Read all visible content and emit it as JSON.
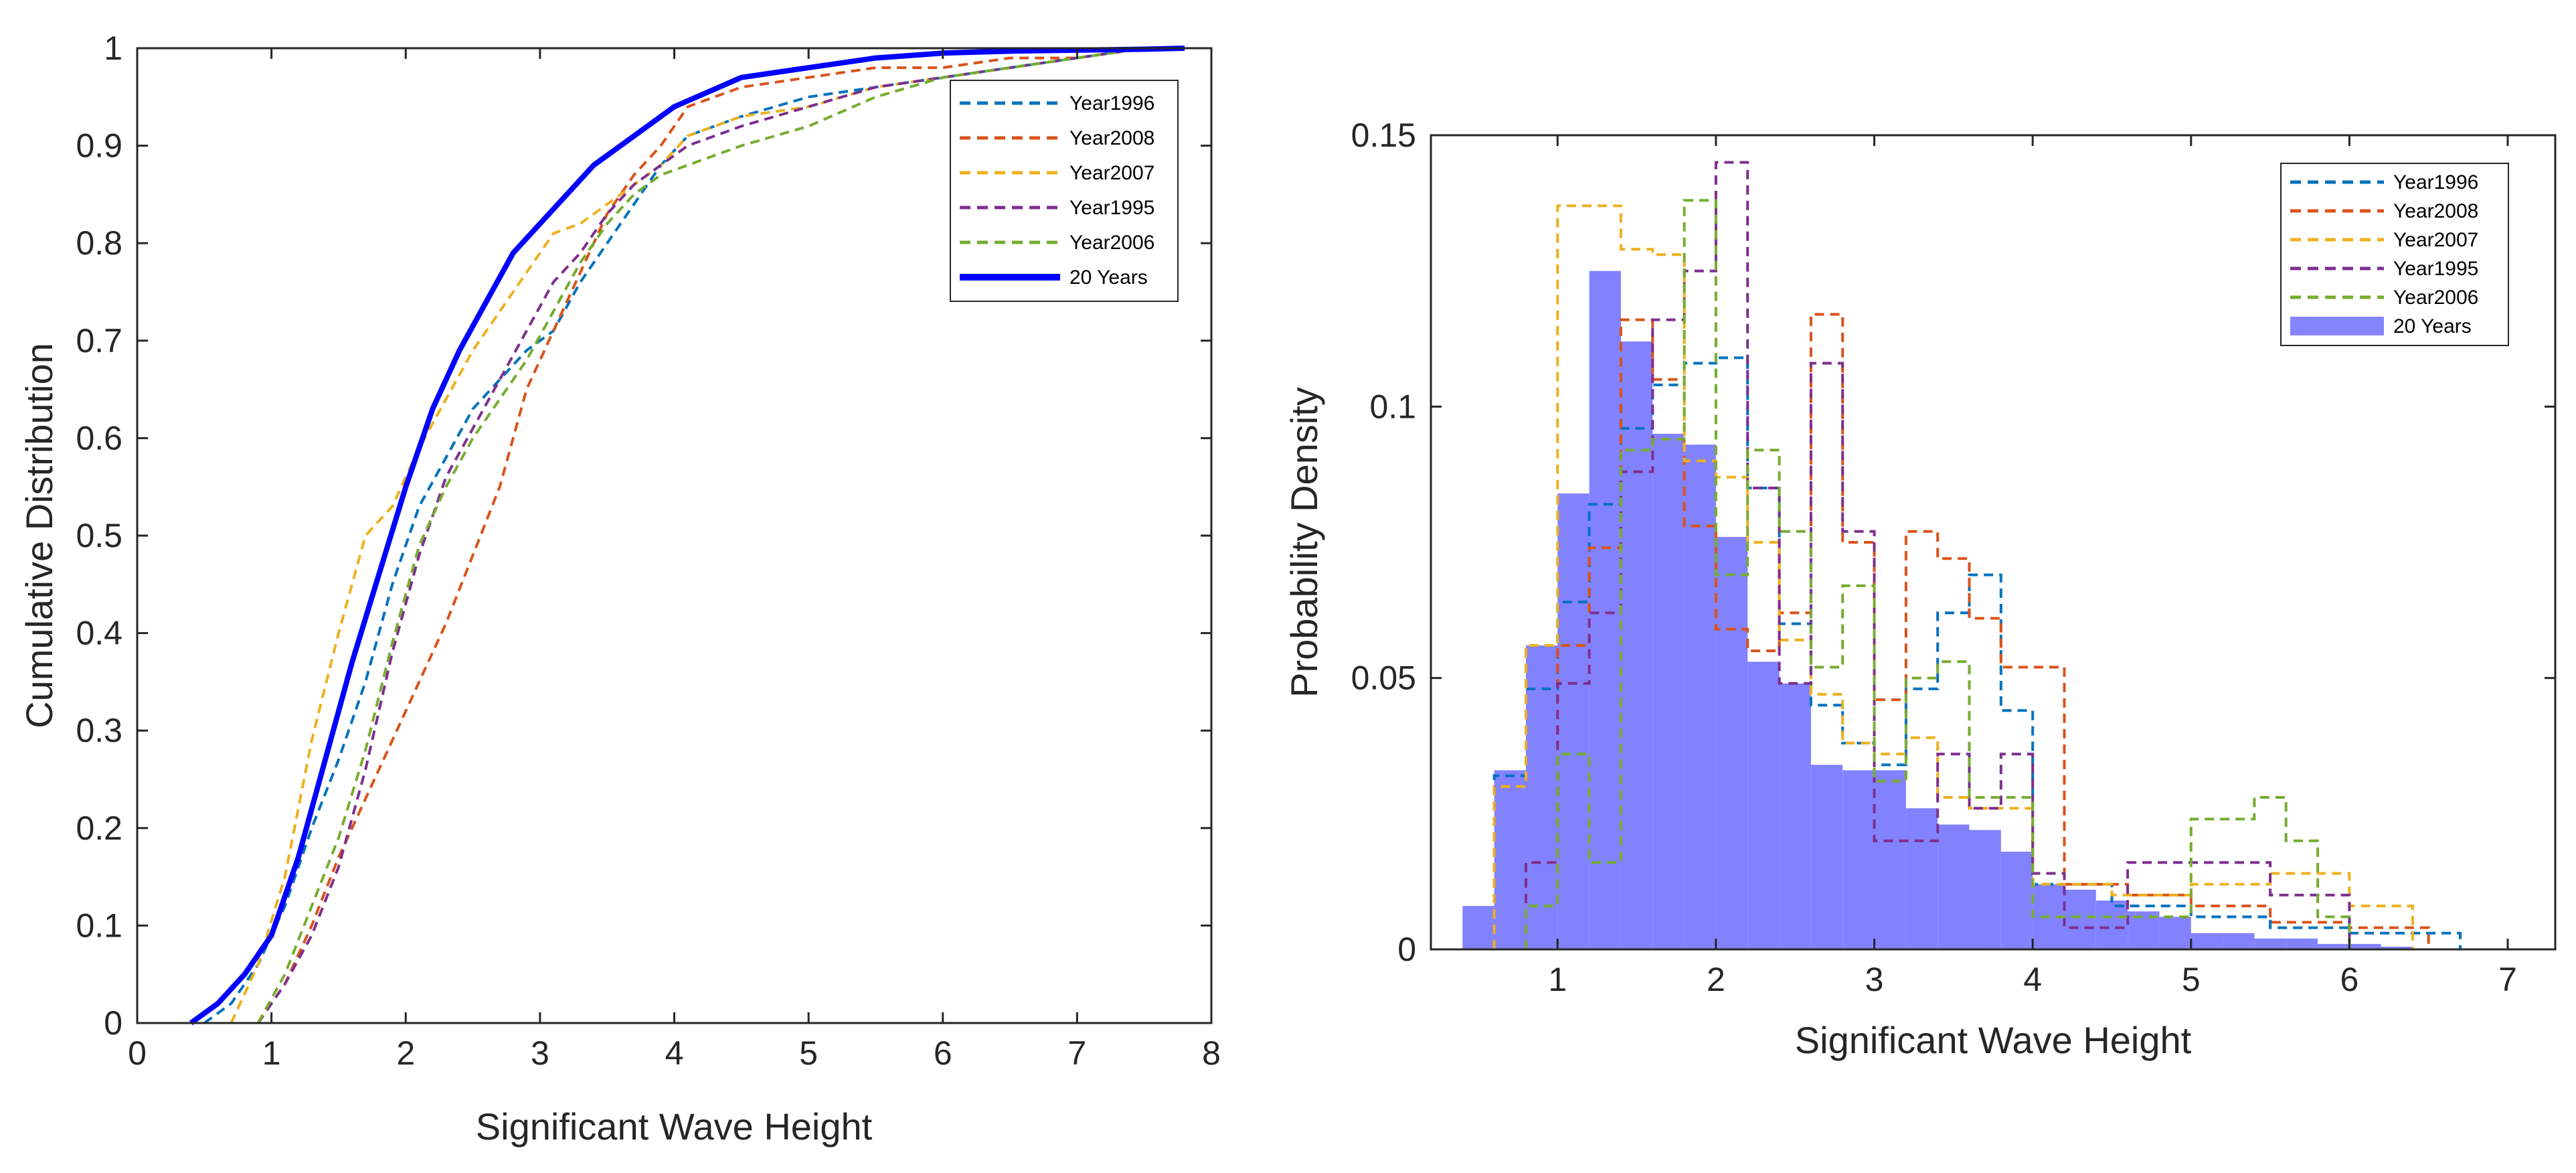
{
  "chart_data": [
    {
      "type": "line",
      "title": "",
      "xlabel": "Significant Wave Height",
      "ylabel": "Cumulative Distribution",
      "xlim": [
        0,
        8
      ],
      "ylim": [
        0,
        1
      ],
      "xticks": [
        "0",
        "1",
        "2",
        "3",
        "4",
        "5",
        "6",
        "7",
        "8"
      ],
      "yticks": [
        "0",
        "0.1",
        "0.2",
        "0.3",
        "0.4",
        "0.5",
        "0.6",
        "0.7",
        "0.8",
        "0.9",
        "1"
      ],
      "legend_position": "top-right",
      "series": [
        {
          "name": "Year1996",
          "color": "#0072BD",
          "style": "dashed",
          "x": [
            0.5,
            0.7,
            0.9,
            1.1,
            1.3,
            1.5,
            1.7,
            1.9,
            2.1,
            2.3,
            2.5,
            2.7,
            2.9,
            3.1,
            3.3,
            3.5,
            3.7,
            3.9,
            4.1,
            4.5,
            5.0,
            5.5,
            6.0,
            6.5,
            7.0,
            7.5
          ],
          "y": [
            0,
            0.02,
            0.06,
            0.12,
            0.2,
            0.27,
            0.35,
            0.45,
            0.53,
            0.58,
            0.63,
            0.66,
            0.69,
            0.71,
            0.76,
            0.8,
            0.84,
            0.88,
            0.91,
            0.93,
            0.95,
            0.96,
            0.97,
            0.98,
            0.99,
            1.0
          ]
        },
        {
          "name": "Year2008",
          "color": "#D95319",
          "style": "dashed",
          "x": [
            0.9,
            1.1,
            1.3,
            1.5,
            1.7,
            1.9,
            2.1,
            2.3,
            2.5,
            2.7,
            2.9,
            3.1,
            3.3,
            3.5,
            3.7,
            3.9,
            4.1,
            4.5,
            5.0,
            5.5,
            6.0,
            6.5,
            7.0,
            7.5
          ],
          "y": [
            0,
            0.04,
            0.1,
            0.17,
            0.23,
            0.29,
            0.35,
            0.41,
            0.48,
            0.55,
            0.65,
            0.71,
            0.77,
            0.83,
            0.87,
            0.9,
            0.94,
            0.96,
            0.97,
            0.98,
            0.98,
            0.99,
            0.99,
            1.0
          ]
        },
        {
          "name": "Year2007",
          "color": "#EDB120",
          "style": "dashed",
          "x": [
            0.7,
            0.9,
            1.1,
            1.3,
            1.5,
            1.7,
            1.9,
            2.1,
            2.3,
            2.5,
            2.7,
            2.9,
            3.1,
            3.3,
            3.5,
            3.7,
            3.9,
            4.1,
            4.5,
            5.0,
            5.5,
            6.0,
            6.5,
            7.0,
            7.5
          ],
          "y": [
            0,
            0.06,
            0.15,
            0.29,
            0.4,
            0.5,
            0.53,
            0.59,
            0.64,
            0.69,
            0.73,
            0.77,
            0.81,
            0.82,
            0.84,
            0.86,
            0.88,
            0.91,
            0.93,
            0.94,
            0.96,
            0.97,
            0.98,
            0.99,
            1.0
          ]
        },
        {
          "name": "Year1995",
          "color": "#7E2F8E",
          "style": "dashed",
          "x": [
            0.9,
            1.1,
            1.3,
            1.5,
            1.7,
            1.9,
            2.1,
            2.3,
            2.5,
            2.7,
            2.9,
            3.1,
            3.3,
            3.5,
            3.7,
            3.9,
            4.1,
            4.5,
            5.0,
            5.5,
            6.0,
            6.5,
            7.0,
            7.5
          ],
          "y": [
            0,
            0.04,
            0.09,
            0.16,
            0.26,
            0.38,
            0.48,
            0.56,
            0.61,
            0.66,
            0.71,
            0.76,
            0.79,
            0.83,
            0.86,
            0.88,
            0.9,
            0.92,
            0.94,
            0.96,
            0.97,
            0.98,
            0.99,
            1.0
          ]
        },
        {
          "name": "Year2006",
          "color": "#77AC30",
          "style": "dashed",
          "x": [
            0.9,
            1.1,
            1.3,
            1.5,
            1.7,
            1.9,
            2.1,
            2.3,
            2.5,
            2.7,
            2.9,
            3.1,
            3.3,
            3.5,
            3.7,
            3.9,
            4.1,
            4.5,
            5.0,
            5.5,
            6.0,
            6.5,
            7.0,
            7.5
          ],
          "y": [
            0,
            0.05,
            0.12,
            0.19,
            0.28,
            0.39,
            0.49,
            0.55,
            0.6,
            0.64,
            0.68,
            0.73,
            0.78,
            0.82,
            0.85,
            0.87,
            0.88,
            0.9,
            0.92,
            0.95,
            0.97,
            0.98,
            0.99,
            1.0
          ]
        },
        {
          "name": "20 Years",
          "color": "#0000FF",
          "style": "solid",
          "x": [
            0.4,
            0.6,
            0.8,
            1.0,
            1.2,
            1.4,
            1.6,
            1.8,
            2.0,
            2.2,
            2.4,
            2.6,
            2.8,
            3.0,
            3.2,
            3.4,
            3.6,
            3.8,
            4.0,
            4.5,
            5.0,
            5.5,
            6.0,
            6.5,
            7.0,
            7.5,
            7.8
          ],
          "y": [
            0,
            0.02,
            0.05,
            0.09,
            0.17,
            0.27,
            0.37,
            0.46,
            0.55,
            0.63,
            0.69,
            0.74,
            0.79,
            0.82,
            0.85,
            0.88,
            0.9,
            0.92,
            0.94,
            0.97,
            0.98,
            0.99,
            0.995,
            0.997,
            0.998,
            0.999,
            1.0
          ]
        }
      ]
    },
    {
      "type": "histogram",
      "title": "",
      "xlabel": "Significant Wave Height",
      "ylabel": "Probability Density",
      "xlim": [
        0.2,
        7.3
      ],
      "ylim": [
        0,
        0.15
      ],
      "xticks": [
        "1",
        "2",
        "3",
        "4",
        "5",
        "6",
        "7"
      ],
      "yticks": [
        "0",
        "0.05",
        "0.1",
        "0.15"
      ],
      "legend_position": "top-right",
      "series": [
        {
          "name": "Year1996",
          "color": "#0072BD",
          "style": "dashed-step",
          "bins": [
            0.6,
            0.8,
            1.0,
            1.2,
            1.4,
            1.6,
            1.8,
            2.0,
            2.2,
            2.4,
            2.6,
            2.8,
            3.0,
            3.2,
            3.4,
            3.6,
            3.8,
            4.0,
            4.5,
            5.0,
            5.5,
            6.0,
            6.5,
            6.7
          ],
          "values": [
            0.032,
            0.048,
            0.064,
            0.082,
            0.096,
            0.104,
            0.108,
            0.109,
            0.085,
            0.06,
            0.045,
            0.038,
            0.034,
            0.048,
            0.062,
            0.069,
            0.044,
            0.012,
            0.008,
            0.006,
            0.004,
            0.003,
            0.003
          ]
        },
        {
          "name": "Year2008",
          "color": "#D95319",
          "style": "dashed-step",
          "bins": [
            0.8,
            1.0,
            1.2,
            1.4,
            1.6,
            1.8,
            2.0,
            2.2,
            2.4,
            2.6,
            2.8,
            3.0,
            3.2,
            3.4,
            3.6,
            3.8,
            4.0,
            4.2,
            4.6,
            5.0,
            5.5,
            6.0,
            6.5
          ],
          "values": [
            0.016,
            0.056,
            0.074,
            0.116,
            0.105,
            0.078,
            0.059,
            0.055,
            0.062,
            0.117,
            0.075,
            0.046,
            0.077,
            0.072,
            0.061,
            0.052,
            0.052,
            0.012,
            0.01,
            0.008,
            0.005,
            0.004
          ]
        },
        {
          "name": "Year2007",
          "color": "#EDB120",
          "style": "dashed-step",
          "bins": [
            0.6,
            0.8,
            1.0,
            1.2,
            1.4,
            1.6,
            1.8,
            2.0,
            2.2,
            2.4,
            2.6,
            2.8,
            3.0,
            3.2,
            3.4,
            3.6,
            3.8,
            4.0,
            4.5,
            5.0,
            5.5,
            6.0,
            6.4
          ],
          "values": [
            0.03,
            0.056,
            0.137,
            0.137,
            0.129,
            0.128,
            0.09,
            0.087,
            0.075,
            0.057,
            0.047,
            0.038,
            0.036,
            0.039,
            0.028,
            0.026,
            0.026,
            0.012,
            0.01,
            0.012,
            0.014,
            0.008
          ]
        },
        {
          "name": "Year1995",
          "color": "#7E2F8E",
          "style": "dashed-step",
          "bins": [
            0.8,
            1.0,
            1.2,
            1.4,
            1.6,
            1.8,
            2.0,
            2.2,
            2.4,
            2.6,
            2.8,
            3.0,
            3.2,
            3.4,
            3.6,
            3.8,
            4.0,
            4.2,
            4.6,
            5.0,
            5.5,
            5.8,
            6.0
          ],
          "values": [
            0.016,
            0.049,
            0.062,
            0.088,
            0.116,
            0.125,
            0.145,
            0.085,
            0.049,
            0.108,
            0.077,
            0.02,
            0.02,
            0.036,
            0.026,
            0.036,
            0.014,
            0.004,
            0.016,
            0.016,
            0.01,
            0.01
          ]
        },
        {
          "name": "Year2006",
          "color": "#77AC30",
          "style": "dashed-step",
          "bins": [
            0.8,
            1.0,
            1.2,
            1.4,
            1.6,
            1.8,
            2.0,
            2.2,
            2.4,
            2.6,
            2.8,
            3.0,
            3.2,
            3.4,
            3.6,
            3.8,
            4.0,
            4.5,
            5.0,
            5.4,
            5.6,
            5.8,
            6.0
          ],
          "values": [
            0.008,
            0.036,
            0.016,
            0.092,
            0.094,
            0.138,
            0.069,
            0.092,
            0.077,
            0.052,
            0.067,
            0.031,
            0.05,
            0.053,
            0.028,
            0.028,
            0.006,
            0.006,
            0.024,
            0.028,
            0.02,
            0.006
          ]
        },
        {
          "name": "20 Years",
          "color": "#6666FF",
          "style": "filled",
          "bins": [
            0.4,
            0.6,
            0.8,
            1.0,
            1.2,
            1.4,
            1.6,
            1.8,
            2.0,
            2.2,
            2.4,
            2.6,
            2.8,
            3.0,
            3.2,
            3.4,
            3.6,
            3.8,
            4.0,
            4.2,
            4.4,
            4.6,
            4.8,
            5.0,
            5.2,
            5.4,
            5.6,
            5.8,
            6.0,
            6.2,
            6.4
          ],
          "values": [
            0.008,
            0.033,
            0.056,
            0.084,
            0.125,
            0.112,
            0.095,
            0.093,
            0.076,
            0.053,
            0.049,
            0.034,
            0.033,
            0.033,
            0.026,
            0.023,
            0.022,
            0.018,
            0.012,
            0.011,
            0.009,
            0.007,
            0.006,
            0.003,
            0.003,
            0.002,
            0.002,
            0.001,
            0.001,
            0.0005
          ]
        }
      ]
    }
  ]
}
